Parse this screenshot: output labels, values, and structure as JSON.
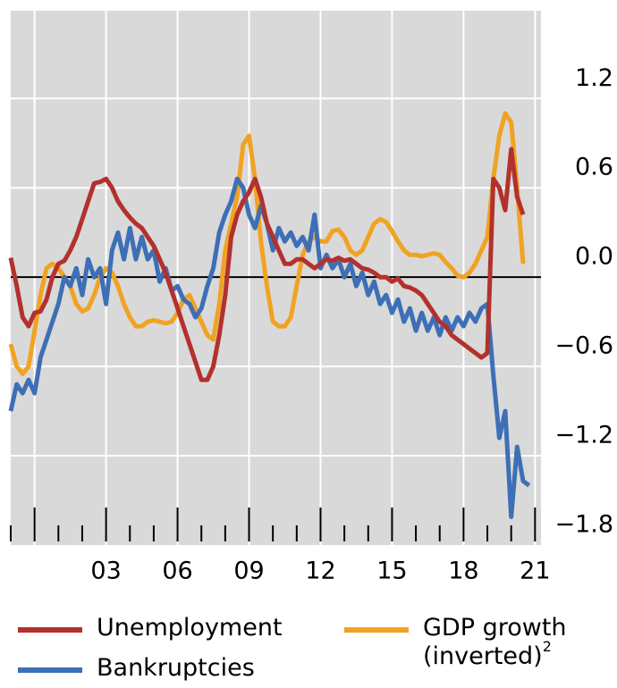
{
  "chart_data": {
    "type": "line",
    "x": [
      1999,
      1999.25,
      1999.5,
      1999.75,
      2000,
      2000.25,
      2000.5,
      2000.75,
      2001,
      2001.25,
      2001.5,
      2001.75,
      2002,
      2002.25,
      2002.5,
      2002.75,
      2003,
      2003.25,
      2003.5,
      2003.75,
      2004,
      2004.25,
      2004.5,
      2004.75,
      2005,
      2005.25,
      2005.5,
      2005.75,
      2006,
      2006.25,
      2006.5,
      2006.75,
      2007,
      2007.25,
      2007.5,
      2007.75,
      2008,
      2008.25,
      2008.5,
      2008.75,
      2009,
      2009.25,
      2009.5,
      2009.75,
      2010,
      2010.25,
      2010.5,
      2010.75,
      2011,
      2011.25,
      2011.5,
      2011.75,
      2012,
      2012.25,
      2012.5,
      2012.75,
      2013,
      2013.25,
      2013.5,
      2013.75,
      2014,
      2014.25,
      2014.5,
      2014.75,
      2015,
      2015.25,
      2015.5,
      2015.75,
      2016,
      2016.25,
      2016.5,
      2016.75,
      2017,
      2017.25,
      2017.5,
      2017.75,
      2018,
      2018.25,
      2018.5,
      2018.75,
      2019,
      2019.25,
      2019.5,
      2019.75,
      2020,
      2020.25,
      2020.5,
      2020.75
    ],
    "series": [
      {
        "name": "Unemployment",
        "color": "#b3312d",
        "values": [
          0.13,
          -0.06,
          -0.27,
          -0.33,
          -0.24,
          -0.23,
          -0.15,
          0.0,
          0.09,
          0.11,
          0.18,
          0.27,
          0.39,
          0.51,
          0.63,
          0.64,
          0.66,
          0.6,
          0.51,
          0.45,
          0.4,
          0.36,
          0.33,
          0.27,
          0.21,
          0.12,
          0.03,
          -0.09,
          -0.21,
          -0.33,
          -0.45,
          -0.57,
          -0.69,
          -0.69,
          -0.6,
          -0.39,
          -0.12,
          0.27,
          0.42,
          0.51,
          0.57,
          0.66,
          0.54,
          0.36,
          0.27,
          0.18,
          0.09,
          0.09,
          0.12,
          0.12,
          0.09,
          0.06,
          0.09,
          0.12,
          0.11,
          0.13,
          0.11,
          0.12,
          0.09,
          0.06,
          0.05,
          0.03,
          0.0,
          0.0,
          -0.03,
          -0.01,
          -0.06,
          -0.07,
          -0.09,
          -0.12,
          -0.18,
          -0.24,
          -0.3,
          -0.33,
          -0.39,
          -0.42,
          -0.45,
          -0.48,
          -0.51,
          -0.54,
          -0.51,
          0.66,
          0.6,
          0.45,
          0.86,
          0.54,
          0.42,
          null
        ]
      },
      {
        "name": "Bankruptcies",
        "color": "#3d6fb6",
        "values": [
          -0.9,
          -0.72,
          -0.78,
          -0.69,
          -0.78,
          -0.54,
          -0.42,
          -0.3,
          -0.18,
          0.0,
          -0.06,
          0.06,
          -0.12,
          0.12,
          0.0,
          0.06,
          -0.18,
          0.18,
          0.3,
          0.12,
          0.33,
          0.12,
          0.27,
          0.12,
          0.18,
          -0.03,
          0.06,
          -0.09,
          -0.06,
          -0.15,
          -0.18,
          -0.27,
          -0.21,
          -0.06,
          0.06,
          0.3,
          0.42,
          0.51,
          0.66,
          0.6,
          0.42,
          0.33,
          0.48,
          0.36,
          0.18,
          0.33,
          0.24,
          0.3,
          0.21,
          0.27,
          0.18,
          0.42,
          0.06,
          0.15,
          0.06,
          0.12,
          0.0,
          0.09,
          -0.06,
          0.03,
          -0.12,
          -0.03,
          -0.18,
          -0.12,
          -0.24,
          -0.15,
          -0.3,
          -0.21,
          -0.36,
          -0.24,
          -0.36,
          -0.27,
          -0.39,
          -0.27,
          -0.36,
          -0.27,
          -0.33,
          -0.24,
          -0.3,
          -0.21,
          -0.18,
          -0.66,
          -1.08,
          -0.9,
          -1.61,
          -1.14,
          -1.37,
          -1.4
        ]
      },
      {
        "name": "GDP growth (inverted)",
        "footnote": "2",
        "color": "#f0a322",
        "values": [
          -0.45,
          -0.6,
          -0.65,
          -0.6,
          -0.36,
          -0.12,
          0.06,
          0.09,
          0.06,
          0.0,
          -0.06,
          -0.18,
          -0.23,
          -0.21,
          -0.12,
          0.0,
          0.06,
          0.03,
          -0.06,
          -0.18,
          -0.27,
          -0.33,
          -0.33,
          -0.3,
          -0.29,
          -0.3,
          -0.31,
          -0.3,
          -0.24,
          -0.15,
          -0.12,
          -0.21,
          -0.3,
          -0.39,
          -0.42,
          -0.18,
          0.18,
          0.36,
          0.54,
          0.89,
          0.95,
          0.66,
          0.24,
          -0.06,
          -0.3,
          -0.33,
          -0.33,
          -0.27,
          -0.06,
          0.15,
          0.24,
          0.27,
          0.24,
          0.24,
          0.31,
          0.32,
          0.27,
          0.18,
          0.15,
          0.18,
          0.27,
          0.36,
          0.39,
          0.37,
          0.31,
          0.24,
          0.18,
          0.15,
          0.15,
          0.14,
          0.15,
          0.16,
          0.15,
          0.1,
          0.06,
          0.01,
          0.0,
          0.03,
          0.09,
          0.18,
          0.27,
          0.66,
          0.95,
          1.1,
          1.04,
          0.6,
          0.09,
          null
        ]
      }
    ],
    "xlim": [
      1999,
      2021.25
    ],
    "xticks": [
      {
        "value": 2003,
        "label": "03"
      },
      {
        "value": 2006,
        "label": "06"
      },
      {
        "value": 2009,
        "label": "09"
      },
      {
        "value": 2012,
        "label": "12"
      },
      {
        "value": 2015,
        "label": "15"
      },
      {
        "value": 2018,
        "label": "18"
      },
      {
        "value": 2021,
        "label": "21"
      }
    ],
    "xminor": [
      1999,
      2000,
      2001,
      2002,
      2003,
      2004,
      2005,
      2006,
      2007,
      2008,
      2009,
      2010,
      2011,
      2012,
      2013,
      2014,
      2015,
      2016,
      2017,
      2018,
      2019,
      2020,
      2021
    ],
    "ylim": [
      -1.8,
      1.79
    ],
    "yticks": [
      1.2,
      0.6,
      {
        "value": 0,
        "label": "0.0"
      },
      {
        "value": -0.6,
        "label": "−0.6"
      },
      {
        "value": -1.2,
        "label": "−1.2"
      },
      {
        "value": -1.8,
        "label": "−1.8"
      }
    ],
    "grid": true
  }
}
